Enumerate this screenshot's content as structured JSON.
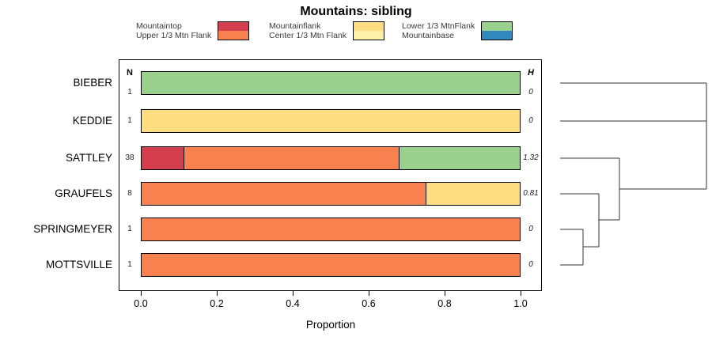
{
  "title": "Mountains: sibling",
  "columns": {
    "n_header": "N",
    "h_header": "H"
  },
  "axis": {
    "xlabel": "Proportion",
    "tick_labels": [
      "0.0",
      "0.2",
      "0.4",
      "0.6",
      "0.8",
      "1.0"
    ]
  },
  "legend": {
    "items": [
      {
        "label": "Mountaintop",
        "color": "#d53e4f"
      },
      {
        "label": "Upper 1/3 Mtn Flank",
        "color": "#f8824f"
      },
      {
        "label": "Mountainflank",
        "color": "#fedd81"
      },
      {
        "label": "Center 1/3 Mtn Flank",
        "color": "#fdf0a8"
      },
      {
        "label": "Lower 1/3 MtnFlank",
        "color": "#99d08e"
      },
      {
        "label": "Mountainbase",
        "color": "#3288bd"
      }
    ]
  },
  "chart_data": {
    "type": "bar",
    "orientation": "horizontal",
    "stacked": true,
    "title": "Mountains: sibling",
    "xlabel": "Proportion",
    "xlim": [
      0,
      1
    ],
    "x_ticks": [
      0,
      0.2,
      0.4,
      0.6,
      0.8,
      1.0
    ],
    "legend_position": "top",
    "grid": false,
    "categories": [
      "BIEBER",
      "KEDDIE",
      "SATTLEY",
      "GRAUFELS",
      "SPRINGMEYER",
      "MOTTSVILLE"
    ],
    "series_colors": {
      "Mountaintop": "#d53e4f",
      "Upper 1/3 Mtn Flank": "#f8824f",
      "Mountainflank": "#fedd81",
      "Center 1/3 Mtn Flank": "#fdf0a8",
      "Lower 1/3 MtnFlank": "#99d08e",
      "Mountainbase": "#3288bd"
    },
    "rows": [
      {
        "label": "BIEBER",
        "n": 1,
        "h": "0",
        "segments": [
          {
            "name": "Lower 1/3 MtnFlank",
            "value": 1.0
          }
        ]
      },
      {
        "label": "KEDDIE",
        "n": 1,
        "h": "0",
        "segments": [
          {
            "name": "Mountainflank",
            "value": 1.0
          }
        ]
      },
      {
        "label": "SATTLEY",
        "n": 38,
        "h": "1.32",
        "segments": [
          {
            "name": "Mountaintop",
            "value": 0.11
          },
          {
            "name": "Upper 1/3 Mtn Flank",
            "value": 0.57
          },
          {
            "name": "Lower 1/3 MtnFlank",
            "value": 0.32
          }
        ]
      },
      {
        "label": "GRAUFELS",
        "n": 8,
        "h": "0.81",
        "segments": [
          {
            "name": "Upper 1/3 Mtn Flank",
            "value": 0.75
          },
          {
            "name": "Mountainflank",
            "value": 0.25
          }
        ]
      },
      {
        "label": "SPRINGMEYER",
        "n": 1,
        "h": "0",
        "segments": [
          {
            "name": "Upper 1/3 Mtn Flank",
            "value": 1.0
          }
        ]
      },
      {
        "label": "MOTTSVILLE",
        "n": 1,
        "h": "0",
        "segments": [
          {
            "name": "Upper 1/3 Mtn Flank",
            "value": 1.0
          }
        ]
      }
    ],
    "dendrogram": {
      "position": "right",
      "structure": "((BIEBER,KEDDIE),(SATTLEY,(GRAUFELS,(SPRINGMEYER,MOTTSVILLE))))"
    }
  }
}
